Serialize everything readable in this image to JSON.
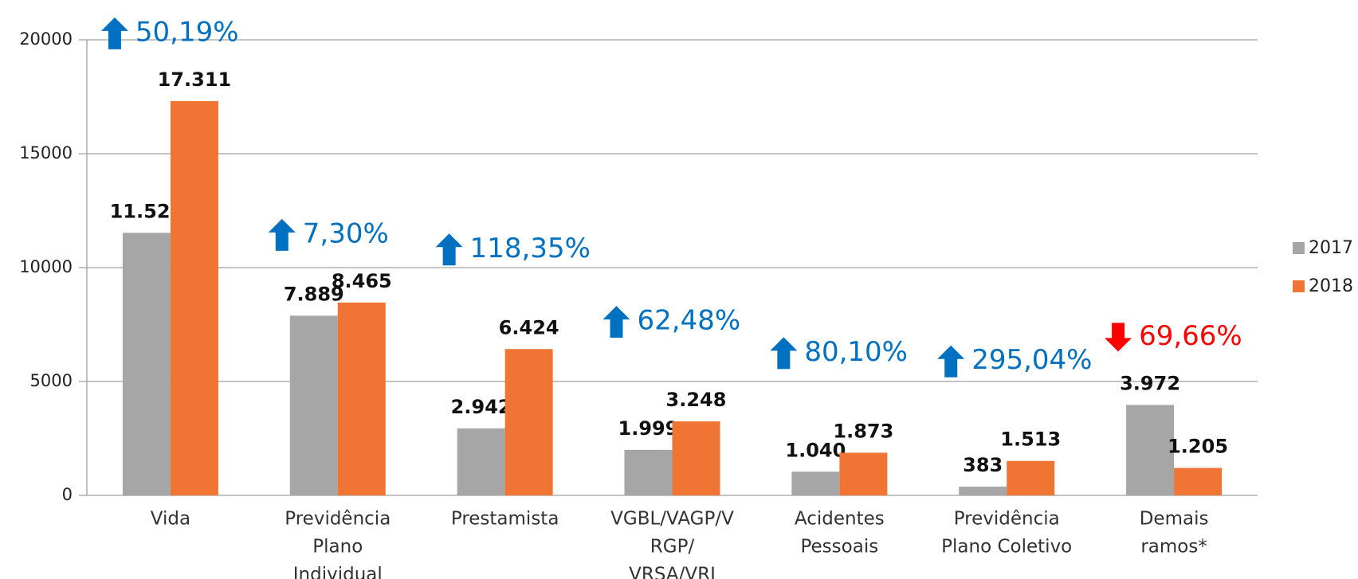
{
  "chart_data": {
    "type": "bar",
    "categories": [
      [
        "Vida"
      ],
      [
        "Previdência",
        "Plano",
        "Individual"
      ],
      [
        "Prestamista"
      ],
      [
        "VGBL/VAGP/V",
        "RGP/",
        "VRSA/VRI"
      ],
      [
        "Acidentes",
        "Pessoais"
      ],
      [
        "Previdência",
        "Plano Coletivo"
      ],
      [
        "Demais",
        "ramos*"
      ]
    ],
    "series": [
      {
        "name": "2017",
        "color": "#a6a6a6",
        "values": [
          11526,
          7889,
          2942,
          1999,
          1040,
          383,
          3972
        ],
        "value_labels": [
          "11.526",
          "7.889",
          "2.942",
          "1.999",
          "1.040",
          "383",
          "3.972"
        ]
      },
      {
        "name": "2018",
        "color": "#f07534",
        "values": [
          17311,
          8465,
          6424,
          3248,
          1873,
          1513,
          1205
        ],
        "value_labels": [
          "17.311",
          "8.465",
          "6.424",
          "3.248",
          "1.873",
          "1.513",
          "1.205"
        ]
      }
    ],
    "annotations": [
      {
        "text": "50,19%",
        "direction": "up",
        "color": "#0070c0"
      },
      {
        "text": "7,30%",
        "direction": "up",
        "color": "#0070c0"
      },
      {
        "text": "118,35%",
        "direction": "up",
        "color": "#0070c0"
      },
      {
        "text": "62,48%",
        "direction": "up",
        "color": "#0070c0"
      },
      {
        "text": "80,10%",
        "direction": "up",
        "color": "#0070c0"
      },
      {
        "text": "295,04%",
        "direction": "up",
        "color": "#0070c0"
      },
      {
        "text": "69,66%",
        "direction": "down",
        "color": "#ff0000"
      }
    ],
    "ylim": [
      0,
      20000
    ],
    "yticks": [
      0,
      5000,
      10000,
      15000,
      20000
    ],
    "grid": true,
    "legend": "right"
  }
}
